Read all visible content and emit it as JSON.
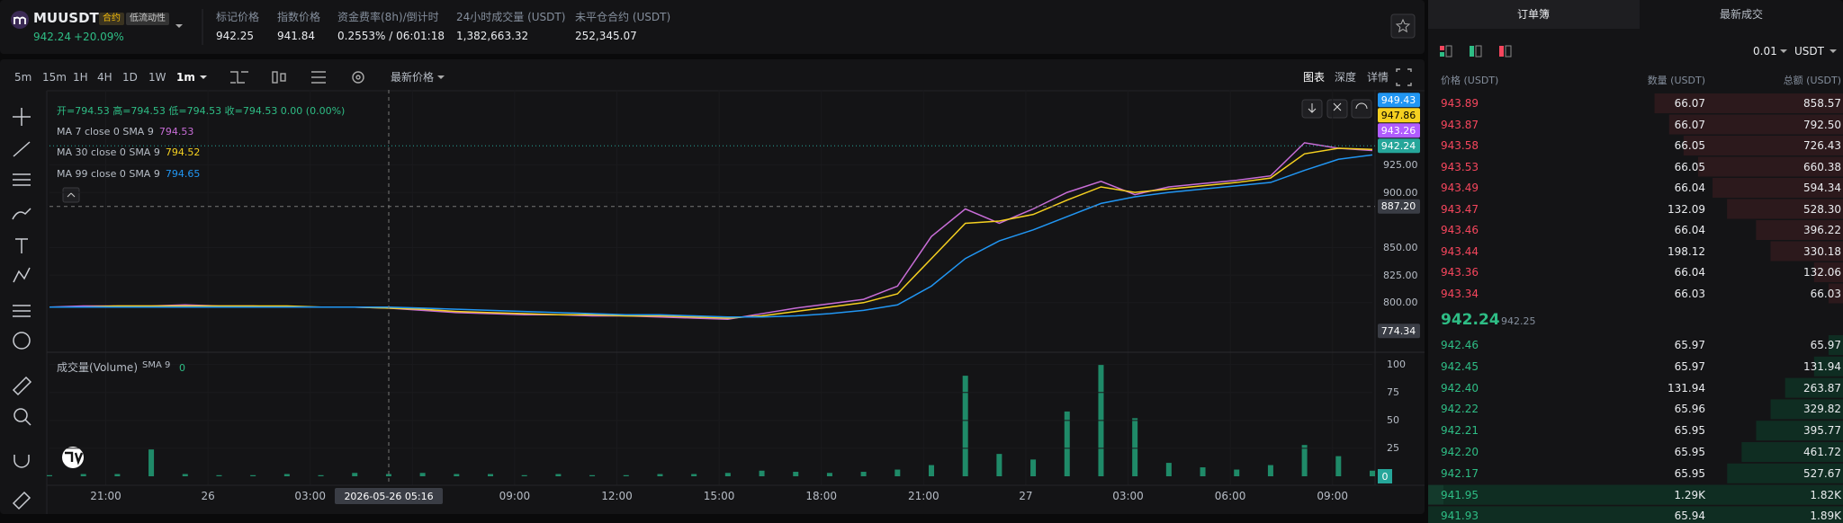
{
  "header": {
    "symbol": "MUUSDT",
    "tags": [
      "合约",
      "低流动性"
    ],
    "last_price": "942.24",
    "change": "+20.09%",
    "stats": [
      {
        "label": "标记价格",
        "value": "942.25"
      },
      {
        "label": "指数价格",
        "value": "941.84"
      },
      {
        "label": "资金费率(8h)/倒计时",
        "value": "0.2553% / 06:01:18"
      },
      {
        "label": "24小时成交量 (USDT)",
        "value": "1,382,663.32"
      },
      {
        "label": "未平仓合约 (USDT)",
        "value": "252,345.07"
      }
    ]
  },
  "toolbar": {
    "intervals": [
      "5m",
      "15m",
      "1H",
      "4H",
      "1D",
      "1W",
      "1m"
    ],
    "price_source": "最新价格",
    "views": [
      "图表",
      "深度",
      "详情"
    ]
  },
  "legend": {
    "ohlc": "开=794.53 高=794.53 低=794.53 收=794.53 0.00 (0.00%)"
  },
  "time_axis": {
    "labels": [
      "21:00",
      "26",
      "03:00",
      null,
      "09:00",
      "12:00",
      "15:00",
      "18:00",
      "21:00",
      "27",
      "03:00",
      "06:00",
      "09:00"
    ],
    "crosshair_label": "2026-05-26 05:16"
  },
  "chart_data": [
    {
      "type": "line",
      "ylim": [
        755,
        993
      ],
      "yticks": [
        {
          "value": 800,
          "label": "800.00"
        },
        {
          "value": 825,
          "label": "825.00"
        },
        {
          "value": 850,
          "label": "850.00"
        },
        {
          "value": 900,
          "label": "900.00"
        },
        {
          "value": 925,
          "label": "925.00"
        }
      ],
      "series": [
        {
          "name": "MA 7 close 0 SMA 9",
          "last_label": "794.53",
          "color": "#c86dd7",
          "values": [
            796,
            797,
            797,
            797,
            798,
            797,
            797,
            796,
            796,
            796,
            795,
            793,
            791,
            790,
            789,
            789,
            788,
            788,
            787,
            786,
            785,
            790,
            795,
            799,
            803,
            815,
            860,
            885,
            872,
            885,
            900,
            910,
            898,
            905,
            908,
            911,
            915,
            945,
            940,
            938
          ]
        },
        {
          "name": "MA 30 close 0 SMA 9",
          "last_label": "794.52",
          "color": "#f5d020",
          "values": [
            796,
            796,
            797,
            797,
            797,
            797,
            797,
            797,
            796,
            796,
            795,
            794,
            792,
            791,
            790,
            789,
            789,
            788,
            788,
            787,
            786,
            788,
            792,
            796,
            800,
            808,
            840,
            872,
            874,
            880,
            893,
            905,
            900,
            903,
            906,
            909,
            913,
            935,
            940,
            939
          ]
        },
        {
          "name": "MA 99 close 0 SMA 9",
          "last_label": "794.65",
          "color": "#2196f3",
          "values": [
            796,
            796,
            796,
            796,
            796,
            796,
            796,
            796,
            796,
            796,
            796,
            795,
            794,
            793,
            792,
            791,
            790,
            789,
            789,
            788,
            787,
            787,
            788,
            790,
            793,
            798,
            815,
            840,
            856,
            866,
            878,
            890,
            896,
            900,
            903,
            906,
            909,
            920,
            930,
            934
          ]
        }
      ],
      "markers": [
        {
          "value": 949.43,
          "label": "949.43",
          "color": "#2196f3"
        },
        {
          "value": 947.86,
          "label": "947.86",
          "color": "#f5d020"
        },
        {
          "value": 943.26,
          "label": "943.26",
          "color": "#b05cff"
        },
        {
          "value": 942.24,
          "label": "942.24",
          "color": "#26a69a"
        },
        {
          "value": 887.2,
          "label": "887.20",
          "color": "#3a3d45"
        },
        {
          "value": 774.34,
          "label": "774.34",
          "color": "#3a3d45"
        }
      ]
    },
    {
      "type": "bar",
      "title": "成交量(Volume)",
      "ma_label": "SMA 9",
      "ma_value": "0",
      "color": "#1f8a68",
      "ylim": [
        0,
        111
      ],
      "yticks": [
        25,
        50,
        75,
        100
      ],
      "values": [
        1,
        2,
        2,
        24,
        2,
        1,
        1,
        2,
        1,
        3,
        2,
        3,
        2,
        2,
        1,
        2,
        1,
        1,
        2,
        2,
        3,
        5,
        4,
        3,
        4,
        6,
        10,
        90,
        20,
        15,
        58,
        100,
        52,
        12,
        8,
        6,
        10,
        28,
        18,
        5
      ],
      "marker": {
        "value": 0,
        "label": "0",
        "color": "#26a69a"
      }
    }
  ],
  "orderbook": {
    "tabs": [
      "订单簿",
      "最新成交"
    ],
    "tick_size": "0.01",
    "unit": "USDT",
    "columns": [
      "价格 (USDT)",
      "数量 (USDT)",
      "总额 (USDT)"
    ],
    "asks": [
      [
        "943.89",
        "66.07",
        "858.57"
      ],
      [
        "943.87",
        "66.07",
        "792.50"
      ],
      [
        "943.58",
        "66.05",
        "726.43"
      ],
      [
        "943.53",
        "66.05",
        "660.38"
      ],
      [
        "943.49",
        "66.04",
        "594.34"
      ],
      [
        "943.47",
        "132.09",
        "528.30"
      ],
      [
        "943.46",
        "66.04",
        "396.22"
      ],
      [
        "943.44",
        "198.12",
        "330.18"
      ],
      [
        "943.36",
        "66.04",
        "132.06"
      ],
      [
        "943.34",
        "66.03",
        "66.03"
      ]
    ],
    "last_price": "942.24",
    "mark_price": "942.25",
    "bids": [
      [
        "942.46",
        "65.97",
        "65.97"
      ],
      [
        "942.45",
        "65.97",
        "131.94"
      ],
      [
        "942.40",
        "131.94",
        "263.87"
      ],
      [
        "942.22",
        "65.96",
        "329.82"
      ],
      [
        "942.21",
        "65.95",
        "395.77"
      ],
      [
        "942.20",
        "65.95",
        "461.72"
      ],
      [
        "942.17",
        "65.95",
        "527.67"
      ],
      [
        "941.95",
        "1.29K",
        "1.82K"
      ],
      [
        "941.93",
        "65.94",
        "1.89K"
      ]
    ]
  }
}
